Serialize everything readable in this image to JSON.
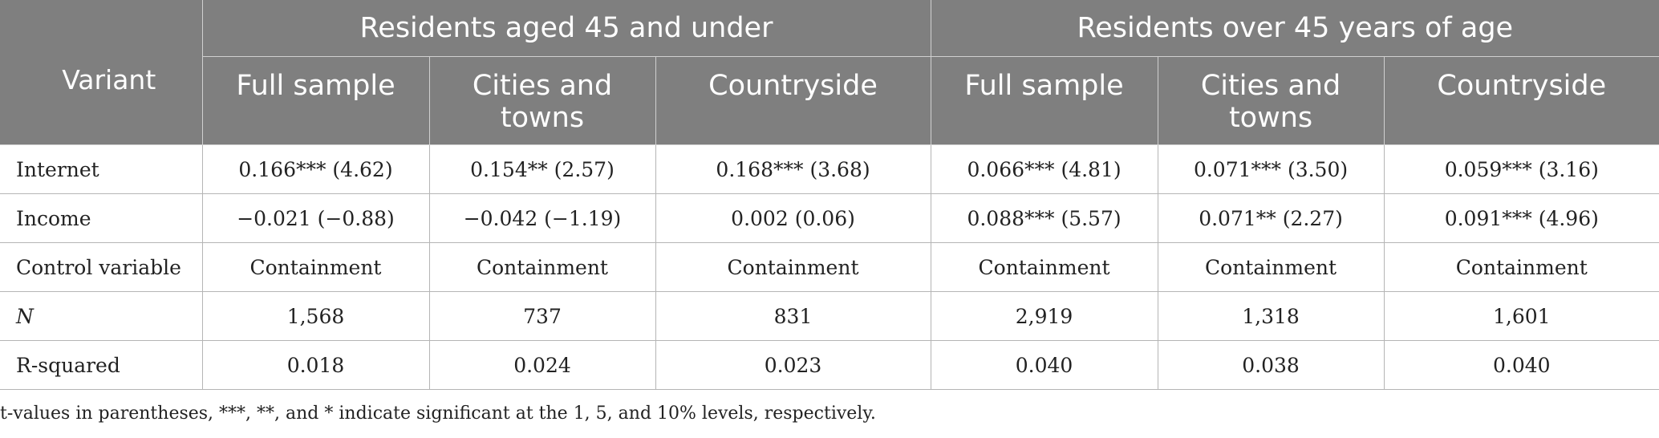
{
  "table": {
    "corner_label": "Variant",
    "groups": [
      "Residents aged 45 and under",
      "Residents over 45 years of age"
    ],
    "subheaders": [
      "Full sample",
      "Cities and towns",
      "Countryside",
      "Full sample",
      "Cities and towns",
      "Countryside"
    ],
    "rows": [
      {
        "label": "Internet",
        "italic": false,
        "cells": [
          "0.166*** (4.62)",
          "0.154** (2.57)",
          "0.168*** (3.68)",
          "0.066*** (4.81)",
          "0.071*** (3.50)",
          "0.059*** (3.16)"
        ]
      },
      {
        "label": "Income",
        "italic": false,
        "cells": [
          "−0.021 (−0.88)",
          "−0.042 (−1.19)",
          "0.002 (0.06)",
          "0.088*** (5.57)",
          "0.071** (2.27)",
          "0.091*** (4.96)"
        ]
      },
      {
        "label": "Control variable",
        "italic": false,
        "cells": [
          "Containment",
          "Containment",
          "Containment",
          "Containment",
          "Containment",
          "Containment"
        ]
      },
      {
        "label": "N",
        "italic": true,
        "cells": [
          "1,568",
          "737",
          "831",
          "2,919",
          "1,318",
          "1,601"
        ]
      },
      {
        "label": "R-squared",
        "italic": false,
        "cells": [
          "0.018",
          "0.024",
          "0.023",
          "0.040",
          "0.038",
          "0.040"
        ]
      }
    ]
  },
  "footnote": "t-values in parentheses, ***, **, and * indicate significant at the 1, 5, and 10% levels, respectively.",
  "colors": {
    "header_bg": "#7f7f7f",
    "header_text": "#ffffff",
    "body_text": "#222222",
    "grid_line": "#b5b5b5"
  }
}
